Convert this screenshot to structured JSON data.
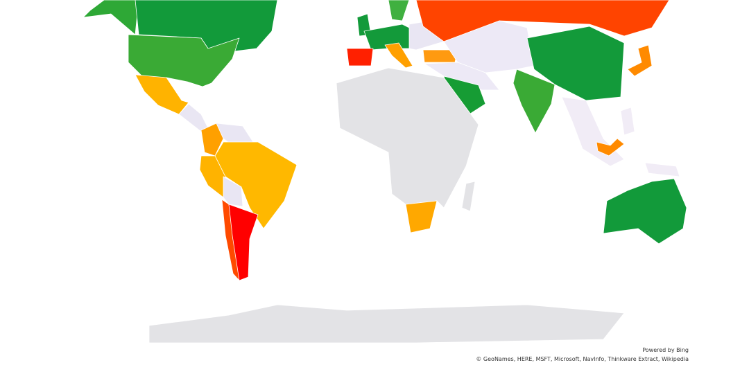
{
  "attribution": {
    "powered_by": "Powered by Bing",
    "sources": "© GeoNames, HERE, MSFT, Microsoft, NavInfo, Thinkware Extract, Wikipedia"
  }
}
